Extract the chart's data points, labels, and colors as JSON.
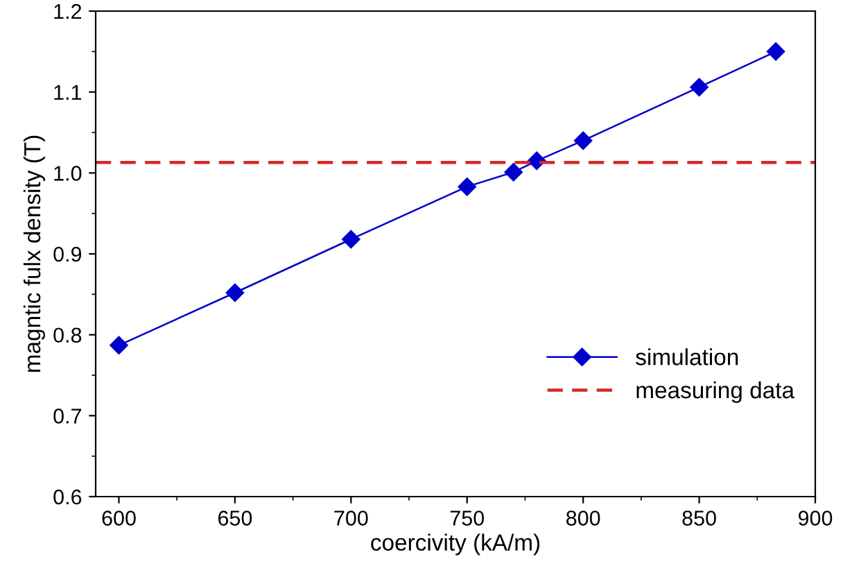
{
  "chart_data": {
    "type": "line",
    "xlabel": "coercivity (kA/m)",
    "ylabel": "magntic fulx density (T)",
    "x": [
      600,
      650,
      700,
      750,
      770,
      780,
      800,
      850,
      883
    ],
    "series": [
      {
        "name": "simulation",
        "color": "#0000cc",
        "values": [
          0.787,
          0.852,
          0.918,
          0.983,
          1.001,
          1.015,
          1.04,
          1.106,
          1.15
        ]
      },
      {
        "name": "measuring data",
        "type": "line",
        "color": "#d62728",
        "line_style": "dashed",
        "marker": "none",
        "x": [
          590,
          900
        ],
        "values": [
          1.013,
          1.013
        ]
      }
    ],
    "marker": "diamond",
    "line_style": "solid",
    "xlim": [
      590,
      900
    ],
    "xticks": [
      600,
      650,
      700,
      750,
      800,
      850,
      900
    ],
    "ylim": [
      0.6,
      1.2
    ],
    "yticks": [
      {
        "value": 0.6,
        "label": "0.6"
      },
      {
        "value": 0.7,
        "label": "0.7"
      },
      {
        "value": 0.8,
        "label": "0.8"
      },
      {
        "value": 0.9,
        "label": "0.9"
      },
      {
        "value": 1.0,
        "label": "1.0"
      },
      {
        "value": 1.1,
        "label": "1.1"
      },
      {
        "value": 1.2,
        "label": "1.2"
      }
    ],
    "grid": false,
    "legend": "bottom right"
  }
}
